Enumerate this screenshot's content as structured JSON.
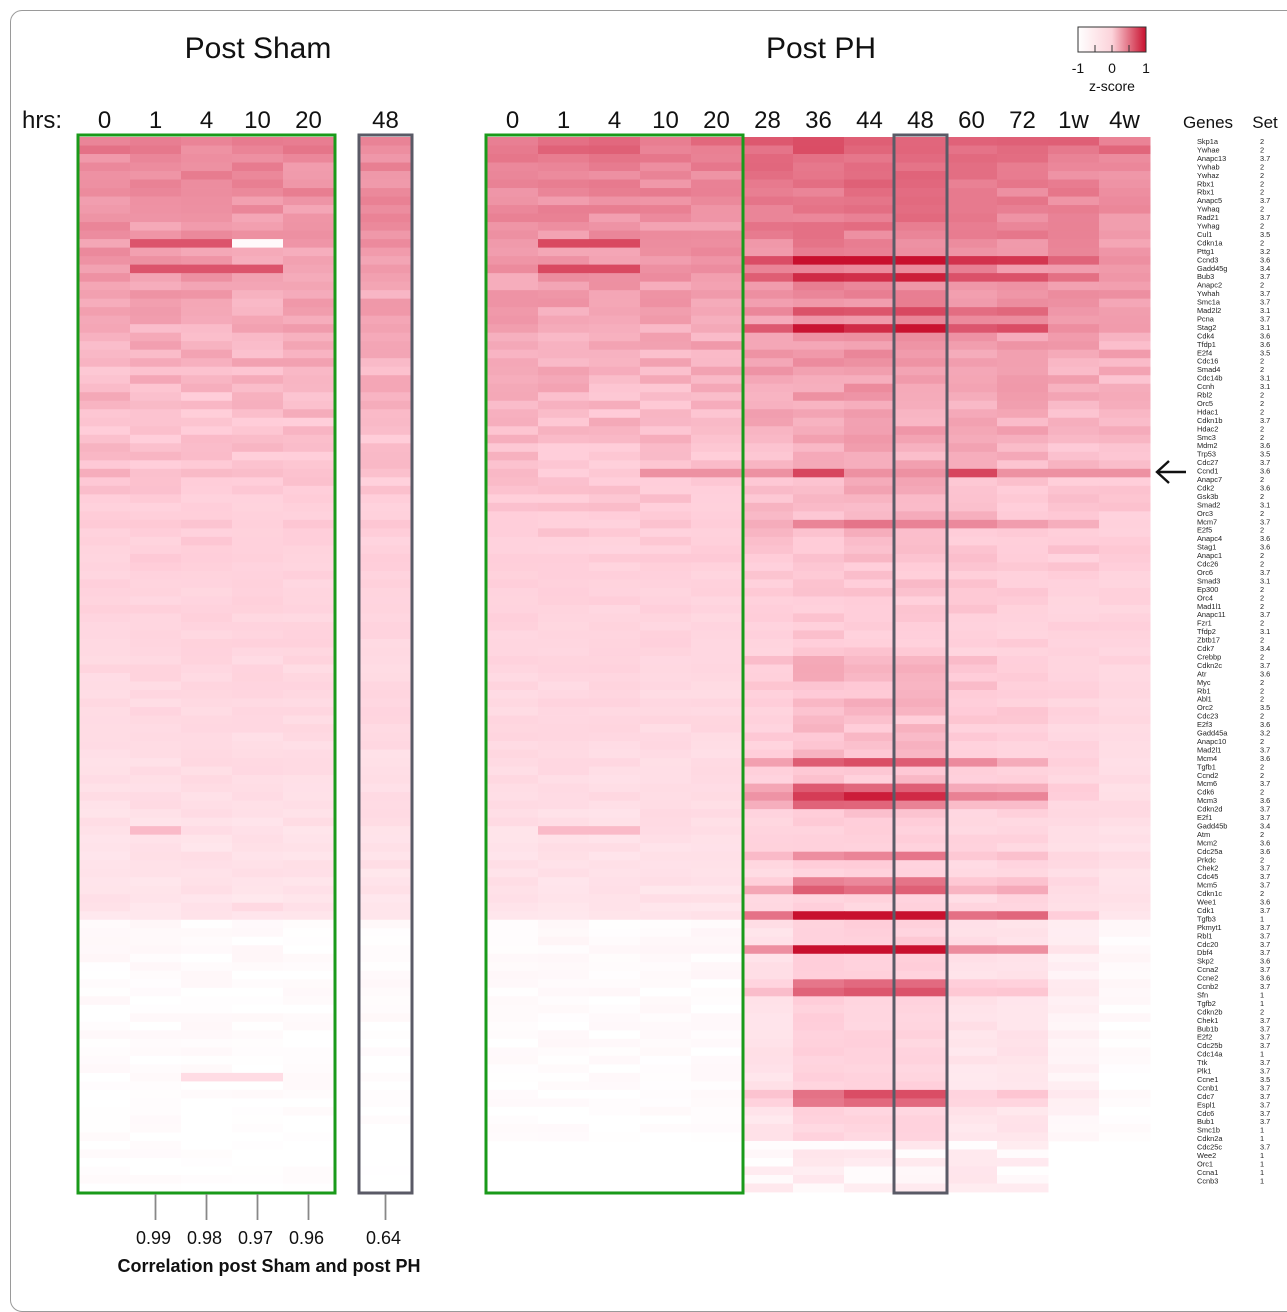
{
  "chart_data": {
    "type": "heatmap",
    "panel_titles": [
      "Post Sham",
      "Post PH"
    ],
    "hours_label": "hrs:",
    "sham_columns": [
      "0",
      "1",
      "4",
      "10",
      "20",
      "48"
    ],
    "ph_columns": [
      "0",
      "1",
      "4",
      "10",
      "20",
      "28",
      "36",
      "44",
      "48",
      "60",
      "72",
      "1w",
      "4w"
    ],
    "genes_header": "Genes",
    "set_header": "Set",
    "legend": {
      "title": "z-score",
      "ticks": [
        "-1",
        "0",
        "1"
      ],
      "low_color": "#ffffff",
      "high_color": "#c8102e"
    },
    "genes": [
      "Skp1a",
      "Ywhae",
      "Anapc13",
      "Ywhab",
      "Ywhaz",
      "Rbx1",
      "Rbx1",
      "Anapc5",
      "Ywhaq",
      "Rad21",
      "Ywhag",
      "Cul1",
      "Cdkn1a",
      "Pttg1",
      "Ccnd3",
      "Gadd45g",
      "Bub3",
      "Anapc2",
      "Ywhah",
      "Smc1a",
      "Mad2l2",
      "Pcna",
      "Stag2",
      "Cdk4",
      "Tfdp1",
      "E2f4",
      "Cdc16",
      "Smad4",
      "Cdc14b",
      "Ccnh",
      "Rbl2",
      "Orc5",
      "Hdac1",
      "Cdkn1b",
      "Hdac2",
      "Smc3",
      "Mdm2",
      "Trp53",
      "Cdc27",
      "Ccnd1",
      "Anapc7",
      "Cdk2",
      "Gsk3b",
      "Smad2",
      "Orc3",
      "Mcm7",
      "E2f5",
      "Anapc4",
      "Stag1",
      "Anapc1",
      "Cdc26",
      "Orc6",
      "Smad3",
      "Ep300",
      "Orc4",
      "Mad1l1",
      "Anapc11",
      "Fzr1",
      "Tfdp2",
      "Zbtb17",
      "Cdk7",
      "Crebbp",
      "Cdkn2c",
      "Atr",
      "Myc",
      "Rb1",
      "Abl1",
      "Orc2",
      "Cdc23",
      "E2f3",
      "Gadd45a",
      "Anapc10",
      "Mad2l1",
      "Mcm4",
      "Tgfb1",
      "Ccnd2",
      "Mcm6",
      "Cdk6",
      "Mcm3",
      "Cdkn2d",
      "E2f1",
      "Gadd45b",
      "Atm",
      "Mcm2",
      "Cdc25a",
      "Prkdc",
      "Chek2",
      "Cdc45",
      "Mcm5",
      "Cdkn1c",
      "Wee1",
      "Cdk1",
      "Tgfb3",
      "Pkmyt1",
      "Rbl1",
      "Cdc20",
      "Dbf4",
      "Skp2",
      "Ccna2",
      "Ccne2",
      "Ccnb2",
      "Sfn",
      "Tgfb2",
      "Cdkn2b",
      "Chek1",
      "Bub1b",
      "E2f2",
      "Cdc25b",
      "Cdc14a",
      "Ttk",
      "Plk1",
      "Ccne1",
      "Ccnb1",
      "Cdc7",
      "Espl1",
      "Cdc6",
      "Bub1",
      "Smc1b",
      "Cdkn2a",
      "Cdc25c",
      "Wee2",
      "Orc1",
      "Ccna1",
      "Ccnb3"
    ],
    "sets": [
      "2",
      "2",
      "3.7",
      "2",
      "2",
      "2",
      "2",
      "3.7",
      "2",
      "3.7",
      "2",
      "3.5",
      "2",
      "3.2",
      "3.6",
      "3.4",
      "3.7",
      "2",
      "3.7",
      "3.7",
      "3.1",
      "3.7",
      "3.1",
      "3.6",
      "3.6",
      "3.5",
      "2",
      "2",
      "3.1",
      "3.1",
      "2",
      "2",
      "2",
      "3.7",
      "2",
      "2",
      "3.6",
      "3.5",
      "3.7",
      "3.6",
      "2",
      "3.6",
      "2",
      "3.1",
      "2",
      "3.7",
      "2",
      "3.6",
      "3.6",
      "2",
      "2",
      "3.7",
      "3.1",
      "2",
      "2",
      "2",
      "3.7",
      "2",
      "3.1",
      "2",
      "3.4",
      "2",
      "3.7",
      "3.6",
      "2",
      "2",
      "2",
      "3.5",
      "2",
      "3.6",
      "3.2",
      "2",
      "3.7",
      "3.6",
      "2",
      "2",
      "3.7",
      "2",
      "3.6",
      "3.7",
      "3.7",
      "3.4",
      "2",
      "3.6",
      "3.6",
      "2",
      "3.7",
      "3.7",
      "3.7",
      "2",
      "3.6",
      "3.7",
      "1",
      "3.7",
      "3.7",
      "3.7",
      "3.7",
      "3.6",
      "3.7",
      "3.6",
      "3.7",
      "1",
      "1",
      "2",
      "3.7",
      "3.7",
      "3.7",
      "3.7",
      "1",
      "3.7",
      "3.7",
      "3.5",
      "3.7",
      "3.7",
      "3.7",
      "3.7",
      "3.7",
      "1",
      "1",
      "3.7",
      "1",
      "1",
      "1",
      "1"
    ],
    "arrow_gene": "Ccnd1",
    "highlight_boxes": [
      {
        "panel": "sham",
        "columns": [
          "0",
          "1",
          "4",
          "10",
          "20"
        ],
        "color": "#1a9a1a"
      },
      {
        "panel": "sham",
        "columns": [
          "48"
        ],
        "color": "#5a5a66"
      },
      {
        "panel": "ph",
        "columns": [
          "0",
          "1",
          "4",
          "10",
          "20"
        ],
        "color": "#1a9a1a"
      },
      {
        "panel": "ph",
        "columns": [
          "48"
        ],
        "color": "#5a5a66"
      }
    ],
    "correlations": [
      {
        "column": "1",
        "value": "0.99"
      },
      {
        "column": "4",
        "value": "0.98"
      },
      {
        "column": "10",
        "value": "0.97"
      },
      {
        "column": "20",
        "value": "0.96"
      },
      {
        "column": "48",
        "value": "0.64"
      }
    ],
    "correlation_title": "Correlation post Sham and post PH"
  }
}
